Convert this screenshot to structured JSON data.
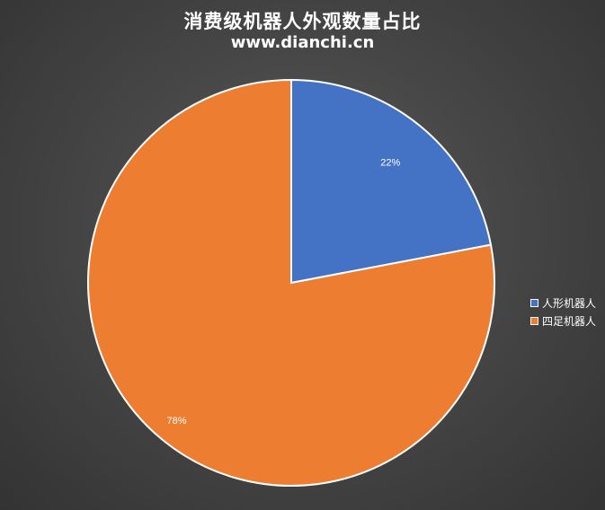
{
  "chart_data": {
    "type": "pie",
    "title": "消费级机器人外观数量占比",
    "subtitle": "www.dianchi.cn",
    "categories": [
      "人形机器人",
      "四足机器人"
    ],
    "values": [
      22,
      78
    ],
    "labels": [
      "22%",
      "78%"
    ],
    "colors": [
      "#4472c4",
      "#ed7d31"
    ],
    "legend_position": "right",
    "slice_border_color": "#ffffff"
  }
}
